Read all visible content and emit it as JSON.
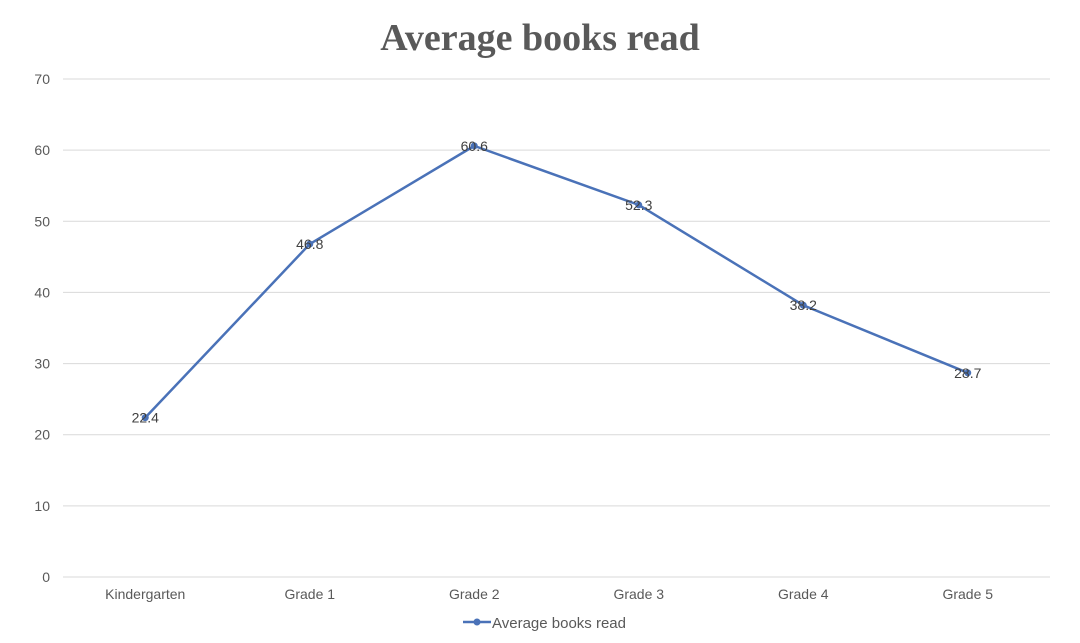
{
  "chart_data": {
    "type": "line",
    "title": "Average books read",
    "xlabel": "",
    "ylabel": "",
    "categories": [
      "Kindergarten",
      "Grade 1",
      "Grade 2",
      "Grade 3",
      "Grade 4",
      "Grade 5"
    ],
    "series": [
      {
        "name": "Average books read",
        "values": [
          22.4,
          46.8,
          60.6,
          52.3,
          38.2,
          28.7
        ],
        "color": "#4a72b8"
      }
    ],
    "ylim": [
      0,
      70
    ],
    "yticks": [
      0,
      10,
      20,
      30,
      40,
      50,
      60,
      70
    ],
    "grid": true,
    "legend": "bottom",
    "data_labels": true,
    "colors": {
      "gridline": "#d9d9d9",
      "text": "#595959"
    }
  }
}
